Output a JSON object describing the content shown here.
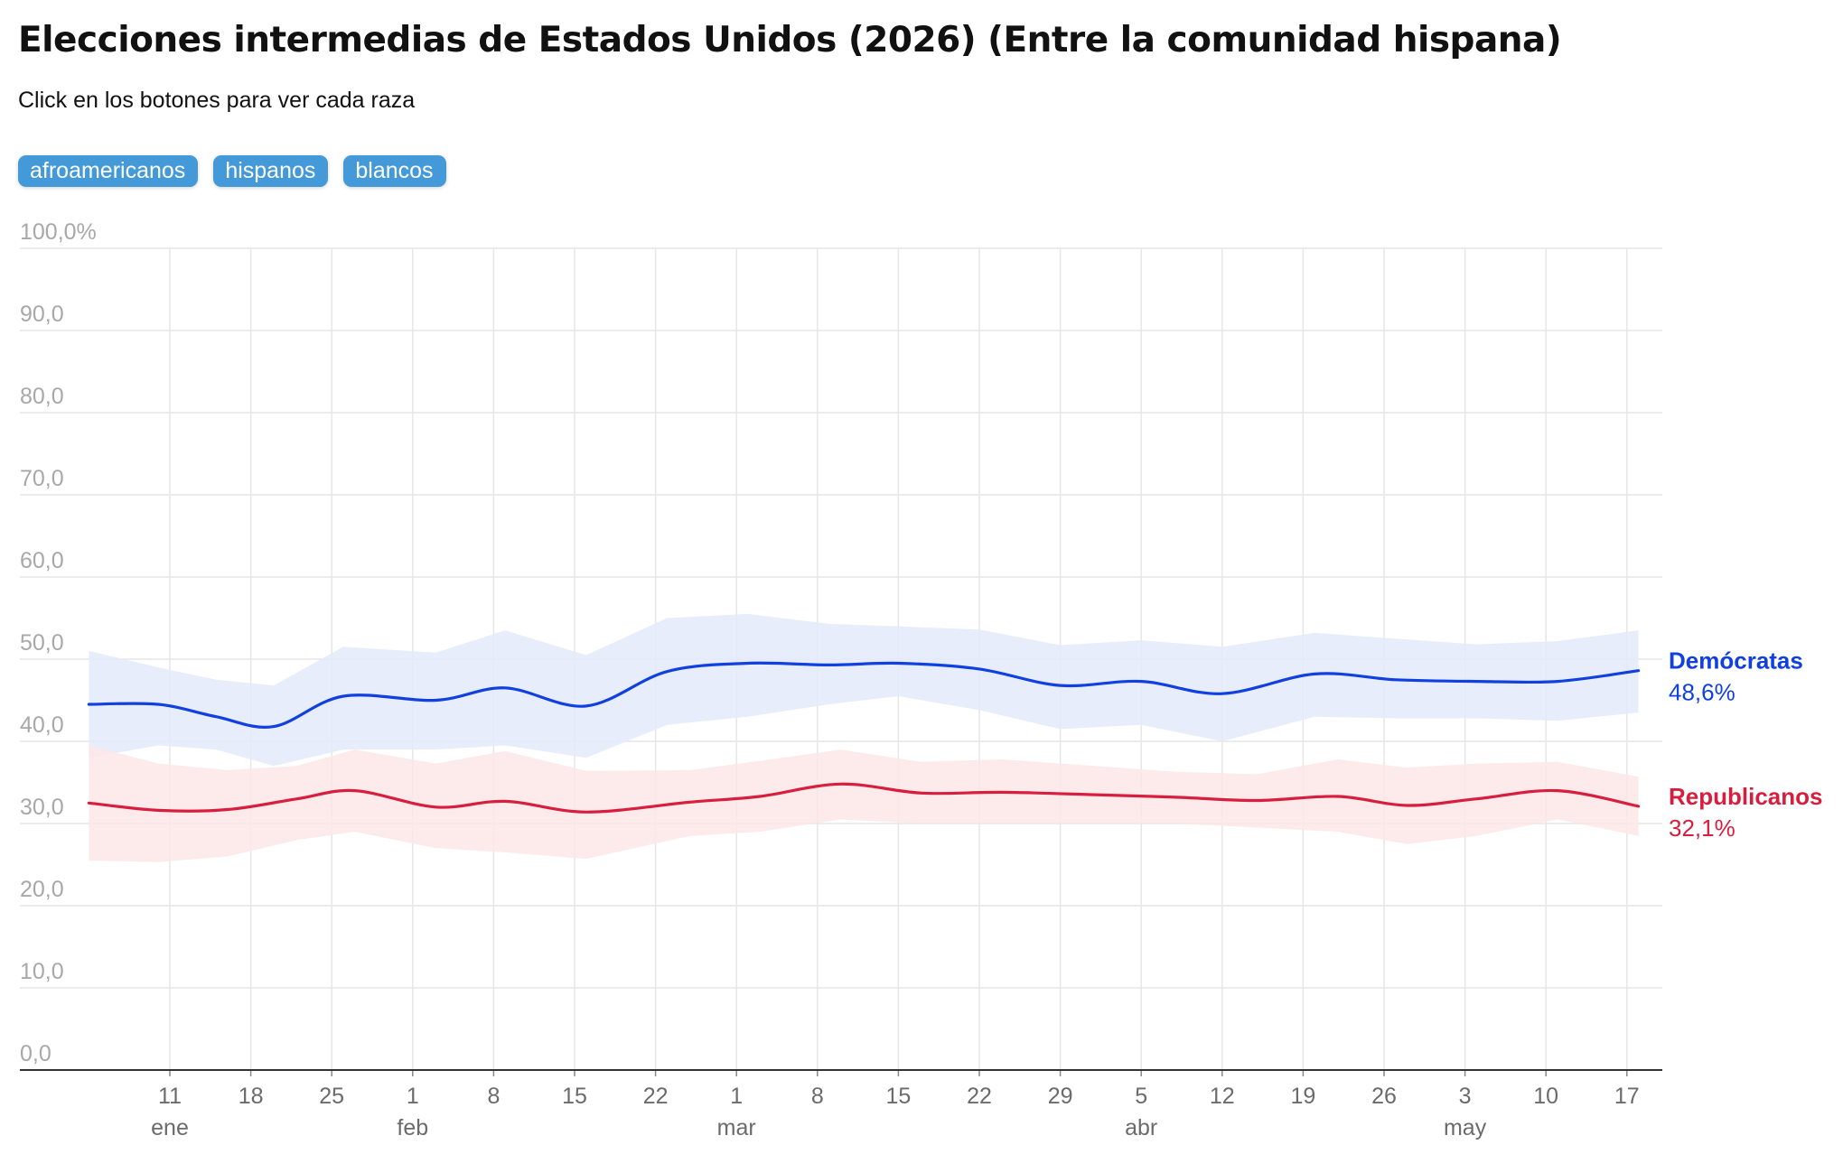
{
  "header": {
    "title": "Elecciones intermedias de Estados Unidos (2026) (Entre la comunidad hispana)",
    "subtitle": "Click en los botones para ver cada raza"
  },
  "buttons": [
    {
      "label": "afroamericanos"
    },
    {
      "label": "hispanos"
    },
    {
      "label": "blancos"
    }
  ],
  "colors": {
    "accent_button": "#4499d9",
    "democrats": "#1040e0",
    "democrats_band": "#e4eafc",
    "republicans": "#d81e3e",
    "republicans_band": "#fde6e6"
  },
  "chart_data": {
    "type": "line",
    "title": "",
    "xlabel": "",
    "ylabel": "",
    "ylim": [
      0,
      100
    ],
    "grid": true,
    "y_ticks": [
      {
        "value": 100,
        "label": "100,0%"
      },
      {
        "value": 90,
        "label": "90,0"
      },
      {
        "value": 80,
        "label": "80,0"
      },
      {
        "value": 70,
        "label": "70,0"
      },
      {
        "value": 60,
        "label": "60,0"
      },
      {
        "value": 50,
        "label": "50,0"
      },
      {
        "value": 40,
        "label": "40,0"
      },
      {
        "value": 30,
        "label": "30,0"
      },
      {
        "value": 20,
        "label": "20,0"
      },
      {
        "value": 10,
        "label": "10,0"
      },
      {
        "value": 0,
        "label": "0,0"
      }
    ],
    "x_range": [
      "2026-01-03",
      "2026-05-19"
    ],
    "x_ticks": [
      {
        "date": "2026-01-11",
        "label": "11",
        "month": "ene"
      },
      {
        "date": "2026-01-18",
        "label": "18",
        "month": ""
      },
      {
        "date": "2026-01-25",
        "label": "25",
        "month": ""
      },
      {
        "date": "2026-02-01",
        "label": "1",
        "month": "feb"
      },
      {
        "date": "2026-02-08",
        "label": "8",
        "month": ""
      },
      {
        "date": "2026-02-15",
        "label": "15",
        "month": ""
      },
      {
        "date": "2026-02-22",
        "label": "22",
        "month": ""
      },
      {
        "date": "2026-03-01",
        "label": "1",
        "month": "mar"
      },
      {
        "date": "2026-03-08",
        "label": "8",
        "month": ""
      },
      {
        "date": "2026-03-15",
        "label": "15",
        "month": ""
      },
      {
        "date": "2026-03-22",
        "label": "22",
        "month": ""
      },
      {
        "date": "2026-03-29",
        "label": "29",
        "month": ""
      },
      {
        "date": "2026-04-05",
        "label": "5",
        "month": "abr"
      },
      {
        "date": "2026-04-12",
        "label": "12",
        "month": ""
      },
      {
        "date": "2026-04-19",
        "label": "19",
        "month": ""
      },
      {
        "date": "2026-04-26",
        "label": "26",
        "month": ""
      },
      {
        "date": "2026-05-03",
        "label": "3",
        "month": "may"
      },
      {
        "date": "2026-05-10",
        "label": "10",
        "month": ""
      },
      {
        "date": "2026-05-17",
        "label": "17",
        "month": ""
      }
    ],
    "series": [
      {
        "name": "Demócratas",
        "end_label": "48,6%",
        "color": "#1040e0",
        "band_color": "#e4eafc",
        "points": [
          {
            "x": "2026-01-04",
            "y": 44.5,
            "lo": 38.0,
            "hi": 51.0
          },
          {
            "x": "2026-01-10",
            "y": 44.5,
            "lo": 39.5,
            "hi": 49.0
          },
          {
            "x": "2026-01-15",
            "y": 43.0,
            "lo": 39.0,
            "hi": 47.5
          },
          {
            "x": "2026-01-20",
            "y": 41.8,
            "lo": 37.0,
            "hi": 46.8
          },
          {
            "x": "2026-01-26",
            "y": 45.5,
            "lo": 39.0,
            "hi": 51.5
          },
          {
            "x": "2026-02-03",
            "y": 45.0,
            "lo": 39.0,
            "hi": 50.8
          },
          {
            "x": "2026-02-09",
            "y": 46.5,
            "lo": 39.5,
            "hi": 53.5
          },
          {
            "x": "2026-02-16",
            "y": 44.3,
            "lo": 38.0,
            "hi": 50.5
          },
          {
            "x": "2026-02-23",
            "y": 48.5,
            "lo": 42.0,
            "hi": 55.0
          },
          {
            "x": "2026-03-02",
            "y": 49.5,
            "lo": 43.0,
            "hi": 55.5
          },
          {
            "x": "2026-03-09",
            "y": 49.3,
            "lo": 44.5,
            "hi": 54.3
          },
          {
            "x": "2026-03-15",
            "y": 49.5,
            "lo": 45.5,
            "hi": 54.0
          },
          {
            "x": "2026-03-22",
            "y": 48.8,
            "lo": 43.8,
            "hi": 53.6
          },
          {
            "x": "2026-03-29",
            "y": 46.8,
            "lo": 41.5,
            "hi": 51.7
          },
          {
            "x": "2026-04-05",
            "y": 47.3,
            "lo": 42.0,
            "hi": 52.3
          },
          {
            "x": "2026-04-12",
            "y": 45.8,
            "lo": 40.0,
            "hi": 51.5
          },
          {
            "x": "2026-04-20",
            "y": 48.2,
            "lo": 43.0,
            "hi": 53.2
          },
          {
            "x": "2026-04-27",
            "y": 47.5,
            "lo": 42.8,
            "hi": 52.5
          },
          {
            "x": "2026-05-04",
            "y": 47.3,
            "lo": 42.8,
            "hi": 51.8
          },
          {
            "x": "2026-05-11",
            "y": 47.3,
            "lo": 42.5,
            "hi": 52.2
          },
          {
            "x": "2026-05-18",
            "y": 48.6,
            "lo": 43.5,
            "hi": 53.5
          }
        ]
      },
      {
        "name": "Republicanos",
        "end_label": "32,1%",
        "color": "#d81e3e",
        "band_color": "#fde6e6",
        "points": [
          {
            "x": "2026-01-04",
            "y": 32.5,
            "lo": 25.5,
            "hi": 39.5
          },
          {
            "x": "2026-01-10",
            "y": 31.6,
            "lo": 25.3,
            "hi": 37.3
          },
          {
            "x": "2026-01-16",
            "y": 31.7,
            "lo": 26.0,
            "hi": 36.5
          },
          {
            "x": "2026-01-22",
            "y": 33.0,
            "lo": 28.0,
            "hi": 37.0
          },
          {
            "x": "2026-01-27",
            "y": 34.0,
            "lo": 29.0,
            "hi": 39.0
          },
          {
            "x": "2026-02-03",
            "y": 32.0,
            "lo": 27.0,
            "hi": 37.3
          },
          {
            "x": "2026-02-09",
            "y": 32.7,
            "lo": 26.5,
            "hi": 38.8
          },
          {
            "x": "2026-02-16",
            "y": 31.4,
            "lo": 25.7,
            "hi": 36.4
          },
          {
            "x": "2026-02-25",
            "y": 32.6,
            "lo": 28.5,
            "hi": 36.5
          },
          {
            "x": "2026-03-03",
            "y": 33.3,
            "lo": 29.0,
            "hi": 37.6
          },
          {
            "x": "2026-03-10",
            "y": 34.8,
            "lo": 30.5,
            "hi": 39.0
          },
          {
            "x": "2026-03-17",
            "y": 33.7,
            "lo": 30.0,
            "hi": 37.5
          },
          {
            "x": "2026-03-24",
            "y": 33.8,
            "lo": 30.0,
            "hi": 37.8
          },
          {
            "x": "2026-04-01",
            "y": 33.5,
            "lo": 30.0,
            "hi": 37.0
          },
          {
            "x": "2026-04-08",
            "y": 33.2,
            "lo": 30.0,
            "hi": 36.3
          },
          {
            "x": "2026-04-15",
            "y": 32.8,
            "lo": 29.5,
            "hi": 36.0
          },
          {
            "x": "2026-04-22",
            "y": 33.3,
            "lo": 29.0,
            "hi": 37.8
          },
          {
            "x": "2026-04-28",
            "y": 32.2,
            "lo": 27.5,
            "hi": 36.8
          },
          {
            "x": "2026-05-04",
            "y": 33.0,
            "lo": 28.5,
            "hi": 37.3
          },
          {
            "x": "2026-05-11",
            "y": 34.0,
            "lo": 30.5,
            "hi": 37.5
          },
          {
            "x": "2026-05-18",
            "y": 32.1,
            "lo": 28.5,
            "hi": 35.7
          }
        ]
      }
    ]
  }
}
